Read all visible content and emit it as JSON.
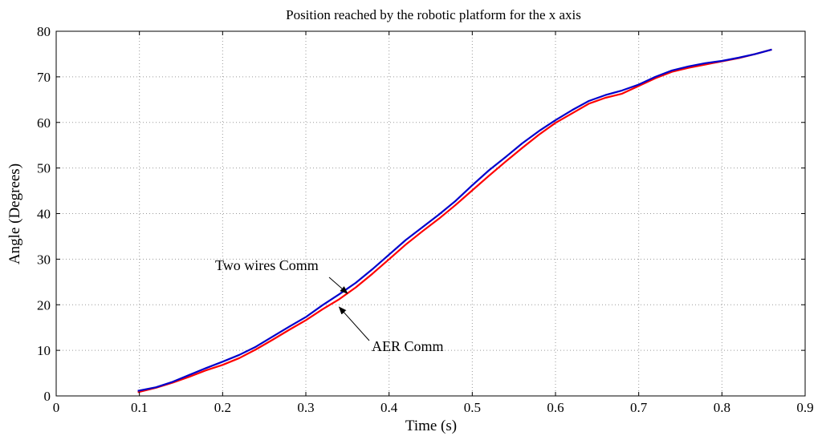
{
  "chart_data": {
    "type": "line",
    "title": "Position reached by the robotic platform for the x axis",
    "xlabel": "Time (s)",
    "ylabel": "Angle (Degrees)",
    "xlim": [
      0,
      0.9
    ],
    "ylim": [
      0,
      80
    ],
    "xticks": [
      0,
      0.1,
      0.2,
      0.3,
      0.4,
      0.5,
      0.6,
      0.7,
      0.8,
      0.9
    ],
    "xtick_labels": [
      "0",
      "0.1",
      "0.2",
      "0.3",
      "0.4",
      "0.5",
      "0.6",
      "0.7",
      "0.8",
      "0.9"
    ],
    "yticks": [
      0,
      10,
      20,
      30,
      40,
      50,
      60,
      70,
      80
    ],
    "ytick_labels": [
      "0",
      "10",
      "20",
      "30",
      "40",
      "50",
      "60",
      "70",
      "80"
    ],
    "grid": true,
    "series": [
      {
        "name": "AER Comm",
        "color": "#ff0000",
        "x": [
          0.098,
          0.12,
          0.14,
          0.16,
          0.18,
          0.2,
          0.22,
          0.24,
          0.26,
          0.28,
          0.3,
          0.32,
          0.34,
          0.36,
          0.38,
          0.4,
          0.42,
          0.44,
          0.46,
          0.48,
          0.5,
          0.52,
          0.54,
          0.56,
          0.58,
          0.6,
          0.62,
          0.64,
          0.66,
          0.68,
          0.7,
          0.72,
          0.74,
          0.76,
          0.78,
          0.8,
          0.82,
          0.84,
          0.86
        ],
        "y": [
          0.8,
          1.8,
          2.9,
          4.2,
          5.6,
          6.8,
          8.3,
          10.2,
          12.3,
          14.5,
          16.6,
          19.0,
          21.2,
          23.8,
          26.8,
          30.0,
          33.2,
          36.1,
          38.9,
          41.9,
          45.1,
          48.3,
          51.4,
          54.4,
          57.3,
          59.9,
          62.0,
          64.1,
          65.4,
          66.3,
          68.0,
          69.7,
          71.1,
          72.0,
          72.7,
          73.4,
          74.1,
          75.0,
          76.0
        ]
      },
      {
        "name": "Two wires Comm",
        "color": "#0000cc",
        "x": [
          0.098,
          0.12,
          0.14,
          0.16,
          0.18,
          0.2,
          0.22,
          0.24,
          0.26,
          0.28,
          0.3,
          0.32,
          0.34,
          0.36,
          0.38,
          0.4,
          0.42,
          0.44,
          0.46,
          0.48,
          0.5,
          0.52,
          0.54,
          0.56,
          0.58,
          0.6,
          0.62,
          0.64,
          0.66,
          0.68,
          0.7,
          0.72,
          0.74,
          0.76,
          0.78,
          0.8,
          0.82,
          0.84,
          0.86
        ],
        "y": [
          1.1,
          1.9,
          3.1,
          4.6,
          6.1,
          7.5,
          9.0,
          10.8,
          13.0,
          15.2,
          17.3,
          19.9,
          22.3,
          24.8,
          27.8,
          31.0,
          34.2,
          37.0,
          39.8,
          42.8,
          46.2,
          49.5,
          52.4,
          55.4,
          58.1,
          60.5,
          62.7,
          64.7,
          66.0,
          67.0,
          68.3,
          70.0,
          71.4,
          72.3,
          73.0,
          73.5,
          74.2,
          75.0,
          76.0
        ]
      }
    ],
    "annotations": [
      {
        "text": "Two wires Comm",
        "arrow_to": [
          0.35,
          22.5
        ]
      },
      {
        "text": "AER Comm",
        "arrow_to": [
          0.34,
          19.5
        ]
      }
    ]
  }
}
